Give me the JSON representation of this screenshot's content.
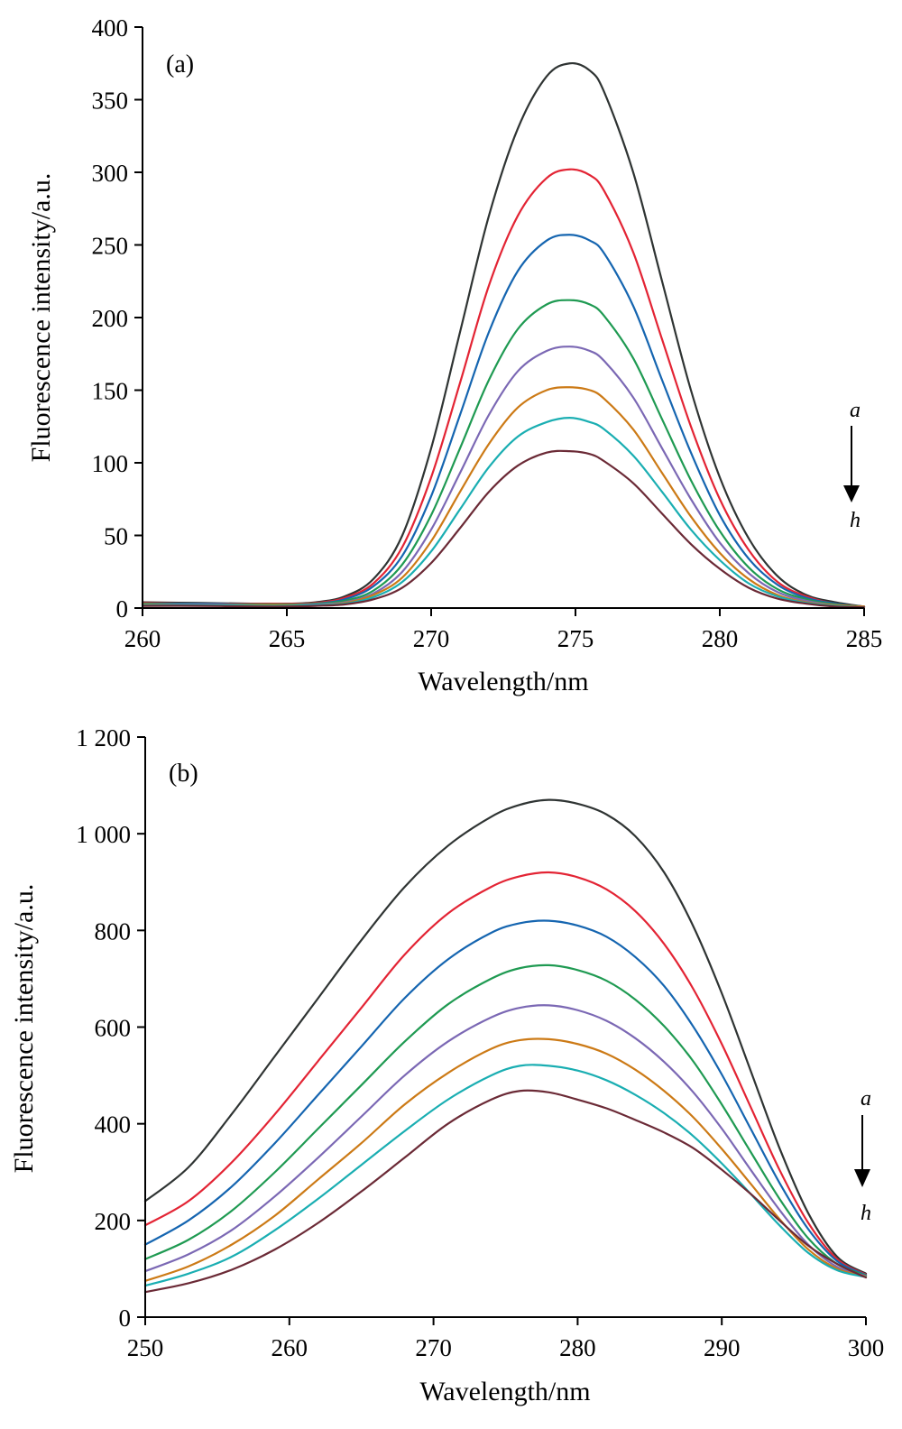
{
  "chart_data": [
    {
      "type": "line",
      "panel_label": "(a)",
      "xlabel": "Wavelength/nm",
      "ylabel": "Fluorescence intensity/a.u.",
      "xlim": [
        260,
        285
      ],
      "ylim": [
        0,
        400
      ],
      "xticks": [
        260,
        265,
        270,
        275,
        280,
        285
      ],
      "xtick_labels": [
        "260",
        "265",
        "270",
        "275",
        "280",
        "285"
      ],
      "yticks": [
        0,
        50,
        100,
        150,
        200,
        250,
        300,
        350,
        400
      ],
      "ytick_labels": [
        "0",
        "50",
        "100",
        "150",
        "200",
        "250",
        "300",
        "350",
        "400"
      ],
      "grid": false,
      "arrow_annotation": {
        "from": "a",
        "to": "h",
        "direction": "down"
      },
      "x": [
        260,
        262,
        264,
        265,
        266,
        267,
        268,
        269,
        270,
        271,
        272,
        273,
        274,
        274.8,
        275.5,
        276,
        277,
        278,
        279,
        280,
        281,
        282,
        283,
        284,
        285
      ],
      "series": [
        {
          "color": "#2f3433",
          "values": [
            4,
            3.5,
            3,
            3,
            4,
            8,
            20,
            50,
            110,
            190,
            270,
            330,
            366,
            375,
            370,
            355,
            300,
            225,
            150,
            90,
            48,
            22,
            9,
            4,
            1
          ]
        },
        {
          "color": "#e32434",
          "values": [
            3.5,
            3,
            3,
            3,
            3.5,
            7,
            17,
            42,
            90,
            155,
            222,
            270,
            296,
            302,
            298,
            287,
            245,
            185,
            125,
            75,
            40,
            18,
            8,
            3,
            1
          ]
        },
        {
          "color": "#1565b0",
          "values": [
            3,
            3,
            2.5,
            2.5,
            3,
            6,
            15,
            36,
            77,
            133,
            190,
            232,
            253,
            257,
            253,
            244,
            208,
            157,
            107,
            64,
            34,
            16,
            7,
            3,
            1
          ]
        },
        {
          "color": "#1f9a52",
          "values": [
            3,
            2.5,
            2.5,
            2.5,
            3,
            5,
            12,
            30,
            64,
            110,
            157,
            192,
            209,
            212,
            209,
            201,
            172,
            130,
            88,
            53,
            28,
            13,
            6,
            2.5,
            1
          ]
        },
        {
          "color": "#7b68b4",
          "values": [
            2.5,
            2.5,
            2,
            2,
            2.5,
            4,
            10,
            25,
            54,
            93,
            133,
            163,
            177,
            180,
            177,
            170,
            145,
            110,
            75,
            45,
            24,
            11,
            5,
            2,
            1
          ]
        },
        {
          "color": "#cc7a16",
          "values": [
            2.5,
            2,
            2,
            2,
            2,
            3.5,
            9,
            21,
            46,
            80,
            113,
            138,
            150,
            152,
            150,
            144,
            123,
            93,
            63,
            38,
            20,
            9,
            4,
            2,
            1
          ]
        },
        {
          "color": "#1aaeb2",
          "values": [
            2,
            2,
            1.5,
            1.5,
            2,
            3,
            7.5,
            18,
            39,
            68,
            97,
            118,
            128,
            131,
            128,
            123,
            105,
            80,
            54,
            33,
            17,
            8,
            3.5,
            1.5,
            0.5
          ]
        },
        {
          "color": "#6b2a36",
          "values": [
            1.5,
            1.5,
            1,
            1,
            1.5,
            2.5,
            6,
            14,
            31,
            55,
            80,
            98,
            107,
            108,
            106,
            101,
            86,
            65,
            44,
            27,
            14,
            6.5,
            3,
            1,
            0.5
          ]
        }
      ]
    },
    {
      "type": "line",
      "panel_label": "(b)",
      "xlabel": "Wavelength/nm",
      "ylabel": "Fluorescence intensity/a.u.",
      "xlim": [
        250,
        300
      ],
      "ylim": [
        0,
        1200
      ],
      "xticks": [
        250,
        260,
        270,
        280,
        290,
        300
      ],
      "xtick_labels": [
        "250",
        "260",
        "270",
        "280",
        "290",
        "300"
      ],
      "yticks": [
        0,
        200,
        400,
        600,
        800,
        1000,
        1200
      ],
      "ytick_labels": [
        "0",
        "200",
        "400",
        "600",
        "800",
        "1 000",
        "1 200"
      ],
      "grid": false,
      "arrow_annotation": {
        "from": "a",
        "to": "h",
        "direction": "down"
      },
      "x": [
        250,
        253,
        256,
        259,
        262,
        265,
        268,
        271,
        274,
        276,
        278,
        280,
        282,
        284,
        286,
        288,
        290,
        292,
        294,
        296,
        298,
        300
      ],
      "series": [
        {
          "color": "#2f3433",
          "values": [
            240,
            310,
            420,
            540,
            660,
            780,
            890,
            975,
            1035,
            1060,
            1070,
            1062,
            1040,
            995,
            920,
            810,
            670,
            510,
            350,
            215,
            125,
            90
          ]
        },
        {
          "color": "#e32434",
          "values": [
            190,
            240,
            320,
            420,
            530,
            640,
            750,
            835,
            890,
            912,
            920,
            910,
            885,
            840,
            772,
            680,
            565,
            435,
            305,
            195,
            120,
            88
          ]
        },
        {
          "color": "#1565b0",
          "values": [
            150,
            200,
            270,
            360,
            460,
            560,
            660,
            740,
            795,
            815,
            820,
            810,
            787,
            745,
            685,
            602,
            502,
            390,
            278,
            182,
            116,
            87
          ]
        },
        {
          "color": "#1f9a52",
          "values": [
            120,
            160,
            220,
            300,
            390,
            480,
            570,
            647,
            700,
            722,
            728,
            718,
            696,
            657,
            602,
            530,
            440,
            342,
            245,
            163,
            110,
            86
          ]
        },
        {
          "color": "#7b68b4",
          "values": [
            95,
            130,
            180,
            250,
            330,
            415,
            500,
            570,
            620,
            640,
            645,
            635,
            613,
            577,
            528,
            466,
            390,
            305,
            222,
            150,
            104,
            85
          ]
        },
        {
          "color": "#cc7a16",
          "values": [
            75,
            105,
            150,
            210,
            285,
            360,
            440,
            505,
            555,
            573,
            575,
            565,
            545,
            512,
            468,
            414,
            348,
            276,
            203,
            140,
            100,
            84
          ]
        },
        {
          "color": "#1aaeb2",
          "values": [
            65,
            90,
            125,
            180,
            245,
            315,
            385,
            450,
            500,
            520,
            520,
            510,
            490,
            460,
            422,
            375,
            318,
            255,
            190,
            133,
            97,
            83
          ]
        },
        {
          "color": "#6b2a36",
          "values": [
            52,
            70,
            98,
            140,
            195,
            260,
            330,
            400,
            450,
            468,
            465,
            450,
            432,
            408,
            382,
            350,
            305,
            255,
            200,
            148,
            110,
            82
          ]
        }
      ]
    }
  ]
}
